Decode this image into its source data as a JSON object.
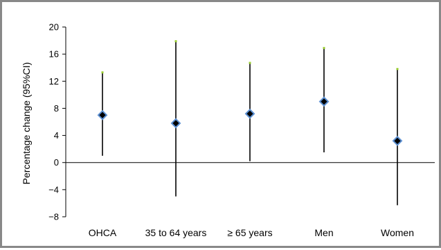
{
  "chart_data": {
    "type": "scatter",
    "title": "",
    "xlabel": "",
    "ylabel": "Percentage change (95%CI)",
    "ylim": [
      -8,
      20
    ],
    "yticks": [
      -8,
      -4,
      0,
      4,
      8,
      12,
      16,
      20
    ],
    "ytick_labels": [
      "−8",
      "−4",
      "0",
      "4",
      "8",
      "12",
      "16",
      "20"
    ],
    "categories": [
      "OHCA",
      "35 to 64 years",
      "≥ 65 years",
      "Men",
      "Women"
    ],
    "series": [
      {
        "values": [
          7.0,
          5.8,
          7.2,
          9.0,
          3.2
        ],
        "lower": [
          1.0,
          -5.0,
          0.2,
          1.5,
          -6.3
        ],
        "upper": [
          13.3,
          17.9,
          14.7,
          16.9,
          13.8
        ]
      }
    ],
    "grid": false,
    "legend": "none",
    "colors": {
      "marker_fill": "#000000",
      "marker_edge": "#5b8fd1",
      "error_bar": "#000000",
      "cap": "#9acd32",
      "frame": "#888888"
    }
  }
}
